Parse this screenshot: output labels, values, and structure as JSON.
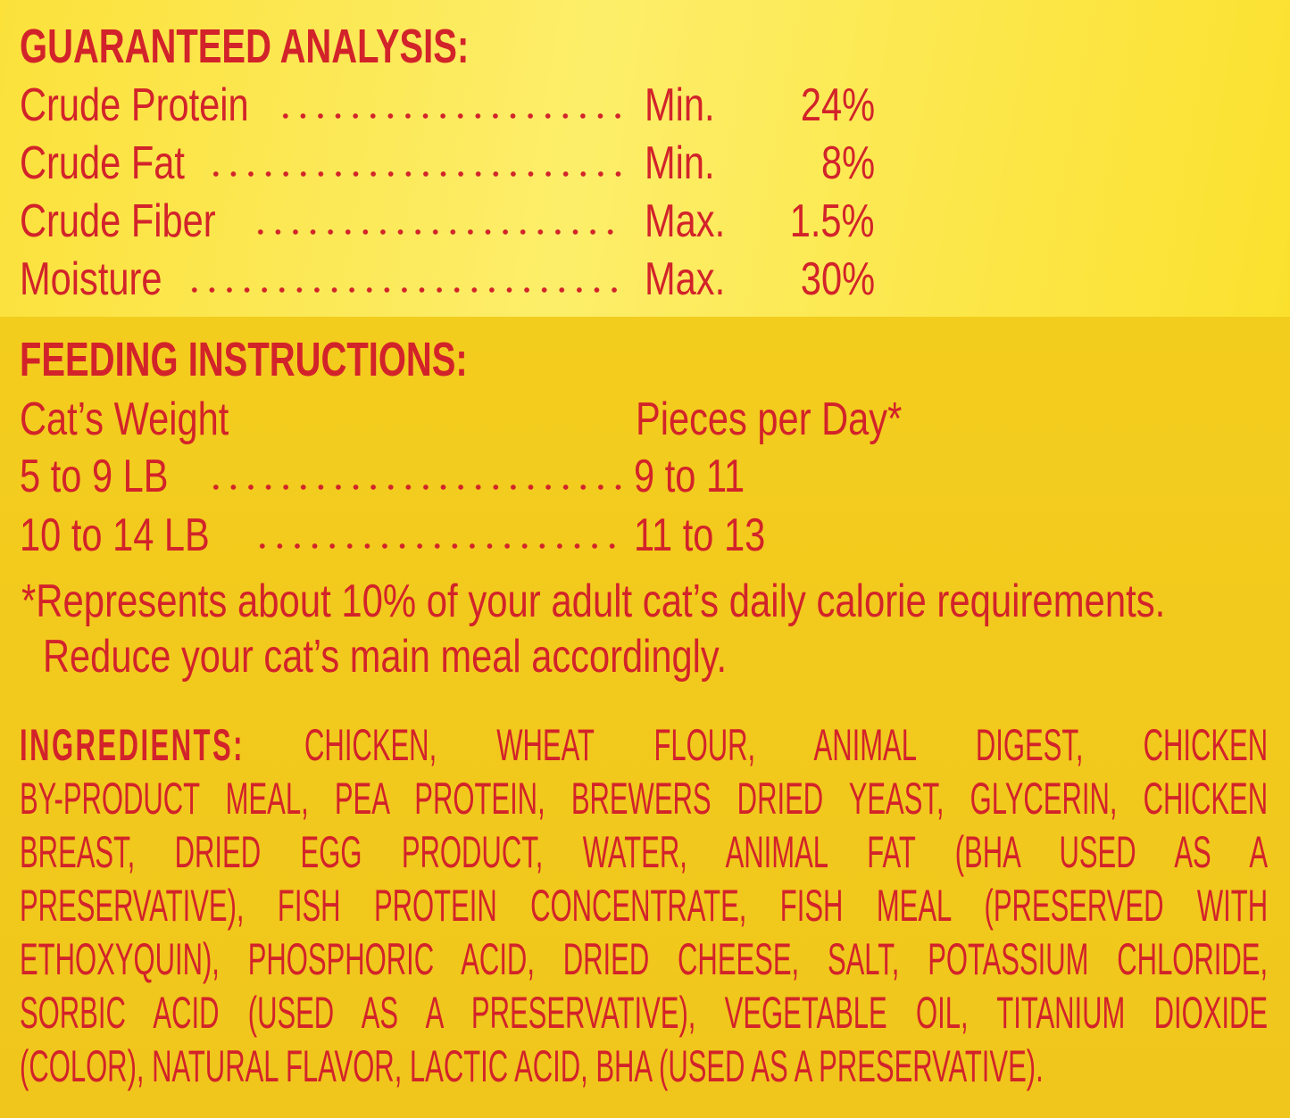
{
  "guaranteed_analysis": {
    "heading": "GUARANTEED ANALYSIS:",
    "rows": [
      {
        "nutrient": "Crude Protein",
        "qualifier": "Min.",
        "value": "24%"
      },
      {
        "nutrient": "Crude Fat",
        "qualifier": "Min.",
        "value": "8%"
      },
      {
        "nutrient": "Crude Fiber",
        "qualifier": "Max.",
        "value": "1.5%"
      },
      {
        "nutrient": "Moisture",
        "qualifier": "Max.",
        "value": "30%"
      }
    ]
  },
  "feeding_instructions": {
    "heading": "FEEDING INSTRUCTIONS:",
    "col_weight": "Cat’s Weight",
    "col_pieces": "Pieces per Day*",
    "rows": [
      {
        "weight": "5 to 9 LB",
        "pieces": "9 to 11"
      },
      {
        "weight": "10 to 14 LB",
        "pieces": "11 to 13"
      }
    ],
    "note_line1": "*Represents about 10% of your adult cat’s daily calorie requirements.",
    "note_line2": "Reduce your cat’s main meal accordingly."
  },
  "ingredients": {
    "heading": "INGREDIENTS:",
    "lines": [
      "CHICKEN, WHEAT FLOUR, ANIMAL DIGEST, CHICKEN",
      "BY-PRODUCT MEAL, PEA PROTEIN, BREWERS DRIED YEAST, GLYCERIN, CHICKEN",
      "BREAST, DRIED EGG PRODUCT, WATER, ANIMAL FAT (BHA USED AS A",
      "PRESERVATIVE), FISH PROTEIN CONCENTRATE, FISH MEAL (PRESERVED WITH",
      "ETHOXYQUIN), PHOSPHORIC ACID, DRIED CHEESE, SALT, POTASSIUM CHLORIDE,",
      "SORBIC ACID (USED AS A PRESERVATIVE), VEGETABLE OIL, TITANIUM DIOXIDE",
      "(COLOR), NATURAL FLAVOR, LACTIC ACID, BHA (USED AS A PRESERVATIVE)."
    ]
  },
  "colors": {
    "text": "#d2232a",
    "top_bg": "#fbe13a",
    "bottom_bg": "#f1c81c"
  }
}
